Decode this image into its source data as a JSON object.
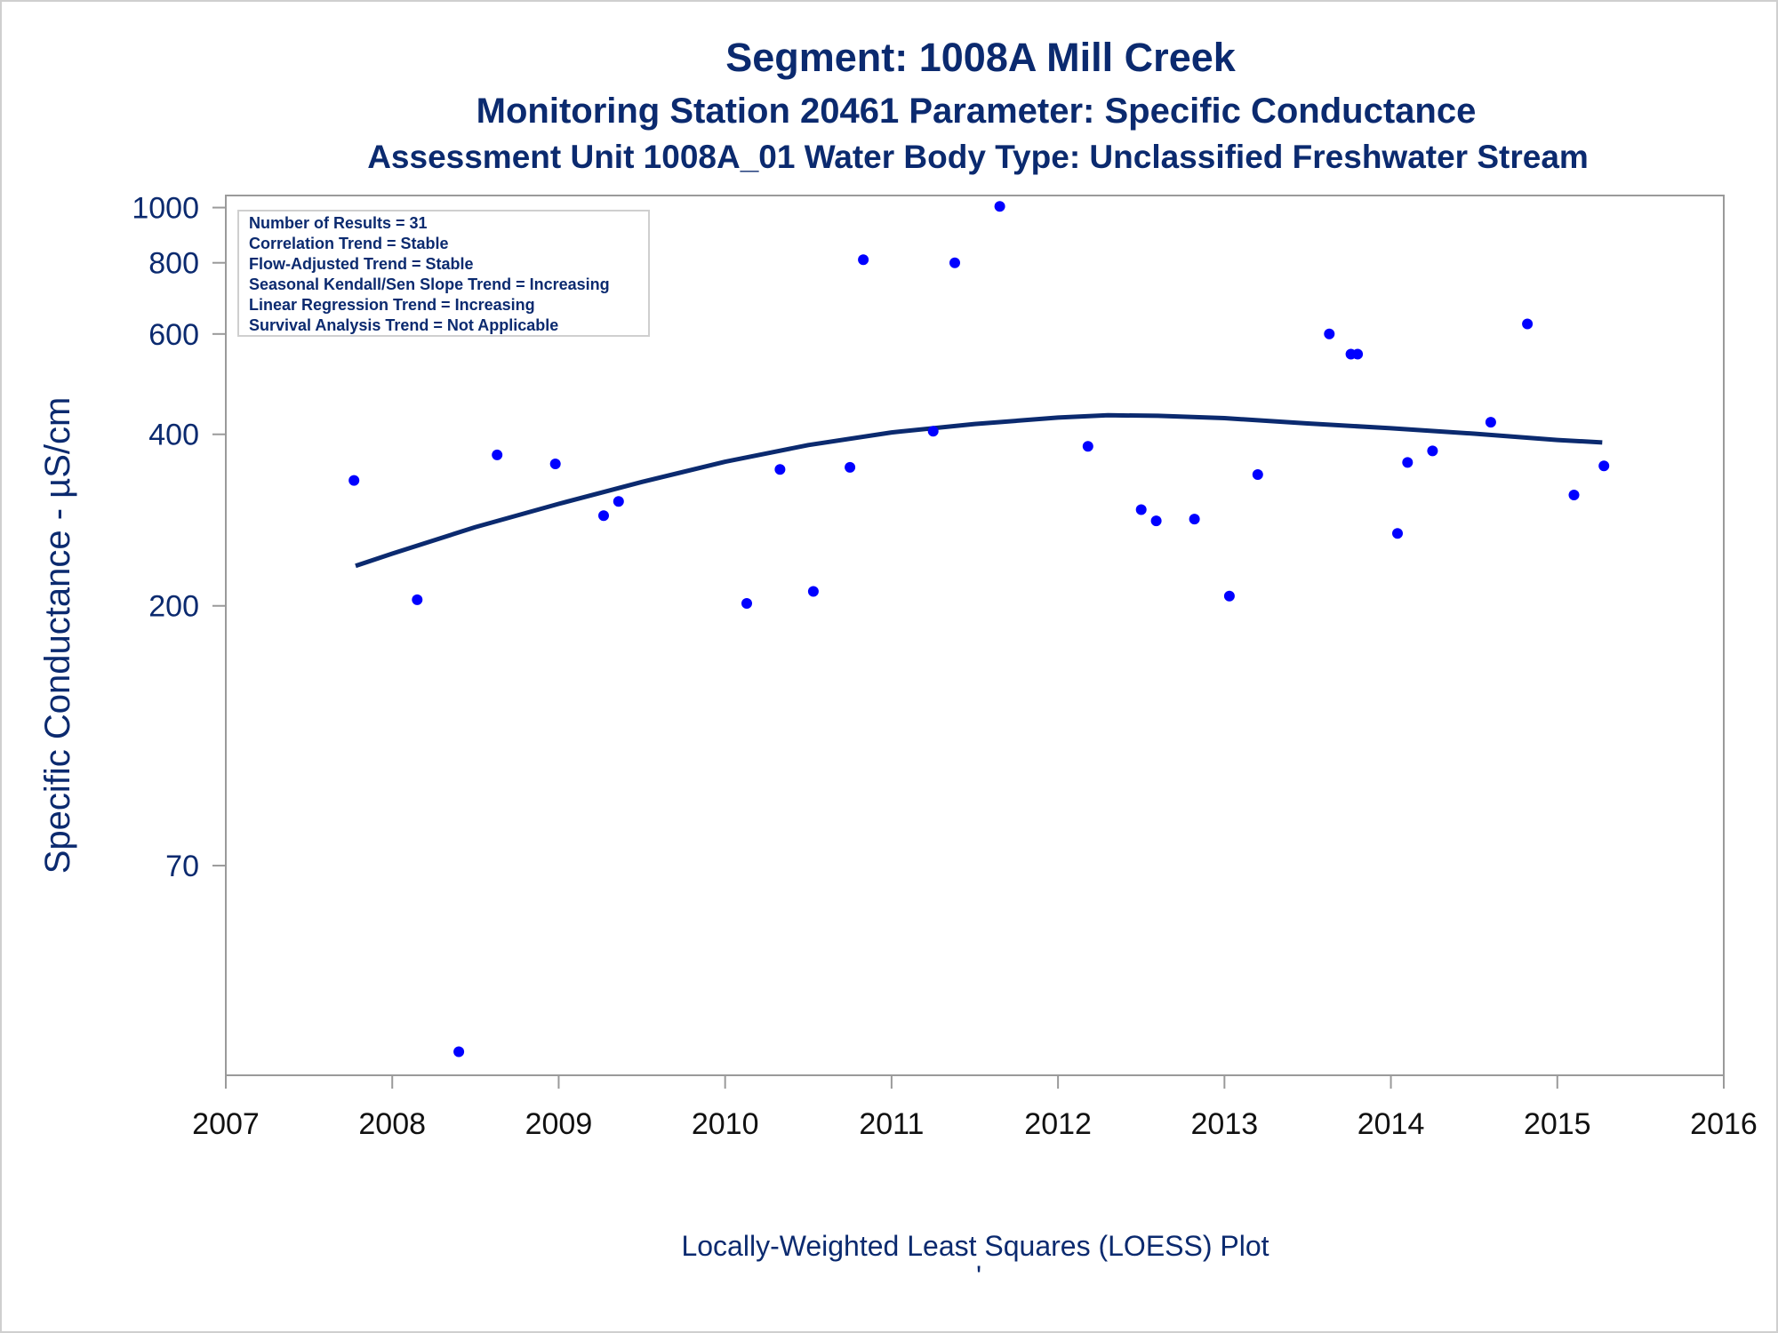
{
  "chart_data": {
    "type": "scatter",
    "title": "Segment: 1008A  Mill Creek",
    "subtitle": "Monitoring Station 20461 Parameter: Specific Conductance",
    "subtitle2": "Assessment Unit 1008A_01   Water Body Type: Unclassified Freshwater Stream",
    "xlabel": "Locally-Weighted Least Squares (LOESS) Plot",
    "ylabel": "Specific Conductance -  µS/cm",
    "footnote": "'",
    "y_scale": "log",
    "xlim": [
      2007,
      2016
    ],
    "ylim": [
      30,
      1050
    ],
    "x_ticks": [
      2007,
      2008,
      2009,
      2010,
      2011,
      2012,
      2013,
      2014,
      2015,
      2016
    ],
    "y_ticks": [
      70,
      200,
      400,
      600,
      800,
      1000
    ],
    "grid": false,
    "stats_box_location": "top-left",
    "stats": [
      "Number of Results = 31",
      "Correlation Trend = Stable",
      "Flow-Adjusted Trend = Stable",
      "Seasonal Kendall/Sen Slope Trend = Increasing",
      "Linear Regression Trend = Increasing",
      "Survival Analysis Trend = Not Applicable"
    ],
    "series": [
      {
        "type": "scatter",
        "color": "#0000ff",
        "points": [
          [
            2007.77,
            332
          ],
          [
            2008.15,
            205
          ],
          [
            2008.4,
            33
          ],
          [
            2008.63,
            368
          ],
          [
            2008.98,
            355
          ],
          [
            2009.27,
            288
          ],
          [
            2009.36,
            305
          ],
          [
            2010.13,
            202
          ],
          [
            2010.33,
            347
          ],
          [
            2010.53,
            212
          ],
          [
            2010.75,
            350
          ],
          [
            2010.83,
            810
          ],
          [
            2011.25,
            405
          ],
          [
            2011.38,
            800
          ],
          [
            2011.65,
            1005
          ],
          [
            2012.18,
            381
          ],
          [
            2012.5,
            295
          ],
          [
            2012.59,
            282
          ],
          [
            2012.82,
            284
          ],
          [
            2013.03,
            208
          ],
          [
            2013.2,
            340
          ],
          [
            2013.63,
            600
          ],
          [
            2013.76,
            553
          ],
          [
            2013.8,
            553
          ],
          [
            2014.04,
            268
          ],
          [
            2014.1,
            357
          ],
          [
            2014.25,
            374
          ],
          [
            2014.6,
            420
          ],
          [
            2014.82,
            625
          ],
          [
            2015.1,
            313
          ],
          [
            2015.28,
            352
          ]
        ]
      },
      {
        "type": "line",
        "color": "#0b2a6f",
        "points": [
          [
            2007.78,
            235
          ],
          [
            2008.0,
            247
          ],
          [
            2008.5,
            275
          ],
          [
            2009.0,
            302
          ],
          [
            2009.5,
            330
          ],
          [
            2010.0,
            358
          ],
          [
            2010.5,
            383
          ],
          [
            2011.0,
            403
          ],
          [
            2011.5,
            417
          ],
          [
            2012.0,
            428
          ],
          [
            2012.3,
            432
          ],
          [
            2012.6,
            431
          ],
          [
            2013.0,
            427
          ],
          [
            2013.5,
            418
          ],
          [
            2014.0,
            410
          ],
          [
            2014.5,
            401
          ],
          [
            2015.0,
            391
          ],
          [
            2015.27,
            387
          ]
        ]
      }
    ]
  }
}
